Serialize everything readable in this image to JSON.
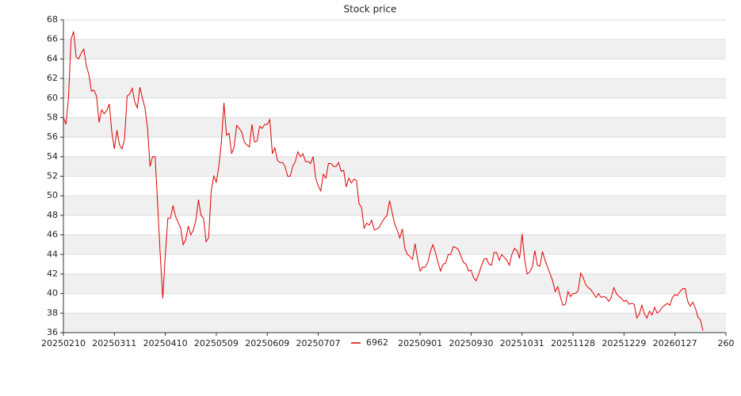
{
  "chart_data": {
    "type": "line",
    "title": "Stock price",
    "xlim": [
      0,
      260
    ],
    "xticks": [
      {
        "value": 0,
        "label": "20250210"
      },
      {
        "value": 20,
        "label": "20250311"
      },
      {
        "value": 40,
        "label": "20250410"
      },
      {
        "value": 60,
        "label": "20250509"
      },
      {
        "value": 80,
        "label": "20250609"
      },
      {
        "value": 100,
        "label": "20250707"
      },
      {
        "value": 140,
        "label": "20250901"
      },
      {
        "value": 160,
        "label": "20250930"
      },
      {
        "value": 180,
        "label": "20251031"
      },
      {
        "value": 200,
        "label": "20251128"
      },
      {
        "value": 220,
        "label": "20251229"
      },
      {
        "value": 240,
        "label": "20260127"
      },
      {
        "value": 260,
        "label": "260"
      }
    ],
    "ylim": [
      36,
      68
    ],
    "yticks": [
      36,
      38,
      40,
      42,
      44,
      46,
      48,
      50,
      52,
      54,
      56,
      58,
      60,
      62,
      64,
      66,
      68
    ],
    "grid": true,
    "legend": "bottom",
    "series": [
      {
        "name": "6962",
        "color": "#e00000",
        "values": [
          58,
          57.3,
          60,
          66,
          66.8,
          64.2,
          64,
          64.6,
          65,
          63.3,
          62.4,
          60.7,
          60.8,
          60.2,
          57.5,
          58.8,
          58.4,
          58.7,
          59.4,
          56.5,
          54.8,
          56.7,
          55.2,
          54.8,
          55.8,
          60.2,
          60.4,
          61,
          59.6,
          59,
          61.1,
          60,
          59,
          57,
          53,
          54,
          54,
          49,
          44,
          39.5,
          44,
          47.7,
          47.7,
          49,
          47.9,
          47.3,
          46.7,
          45,
          45.5,
          46.9,
          46,
          46.5,
          47.5,
          49.6,
          48,
          47.7,
          45.3,
          45.7,
          50.5,
          52,
          51.4,
          53,
          55.5,
          59.5,
          56.2,
          56.4,
          54.3,
          55,
          57.2,
          56.9,
          56.5,
          55.5,
          55.2,
          55,
          57.3,
          55.5,
          55.6,
          57.1,
          56.9,
          57.3,
          57.3,
          57.8,
          54.3,
          54.9,
          53.6,
          53.4,
          53.4,
          53,
          52,
          52,
          53,
          53.5,
          54.5,
          54,
          54.3,
          53.5,
          53.5,
          53.3,
          54,
          51.8,
          51,
          50.5,
          52.2,
          51.8,
          53.3,
          53.3,
          53,
          53,
          53.4,
          52.5,
          52.6,
          50.9,
          51.8,
          51.3,
          51.7,
          51.6,
          49.2,
          48.8,
          46.7,
          47.2,
          47,
          47.5,
          46.5,
          46.6,
          46.8,
          47.3,
          47.7,
          48,
          49.5,
          48.3,
          47.1,
          46.5,
          45.7,
          46.6,
          44.6,
          44,
          43.8,
          43.5,
          45.1,
          43.5,
          42.3,
          42.7,
          42.7,
          43.2,
          44.3,
          45,
          44.2,
          43.2,
          42.3,
          43,
          43.1,
          44,
          44,
          44.8,
          44.7,
          44.5,
          43.8,
          43.2,
          43,
          42.3,
          42.4,
          41.6,
          41.3,
          42,
          42.8,
          43.5,
          43.6,
          43,
          42.9,
          44.2,
          44.2,
          43.4,
          44,
          43.7,
          43.4,
          42.9,
          44,
          44.6,
          44.4,
          43.6,
          46.1,
          43.5,
          42,
          42.2,
          42.7,
          44.4,
          42.9,
          42.8,
          44.3,
          43.4,
          42.7,
          42,
          41.3,
          40.2,
          40.7,
          39.7,
          38.8,
          38.9,
          40.2,
          39.7,
          40,
          40,
          40.3,
          42.1,
          41.6,
          40.9,
          40.6,
          40.4,
          40,
          39.6,
          40,
          39.6,
          39.7,
          39.6,
          39.2,
          39.6,
          40.6,
          40,
          39.7,
          39.5,
          39.2,
          39.3,
          38.9,
          39,
          38.9,
          37.5,
          37.9,
          38.8,
          37.9,
          37.5,
          38.2,
          37.8,
          38.6,
          38,
          38.2,
          38.6,
          38.8,
          39,
          38.8,
          39.6,
          39.9,
          39.8,
          40.2,
          40.5,
          40.5,
          39.2,
          38.7,
          39.1,
          38.5,
          37.6,
          37.3,
          36.2
        ]
      }
    ]
  }
}
